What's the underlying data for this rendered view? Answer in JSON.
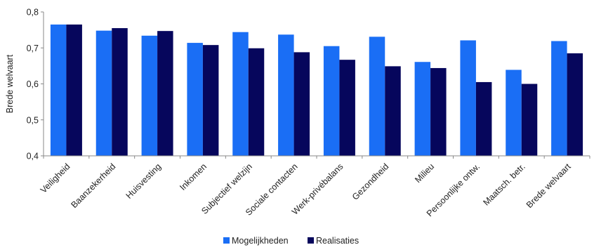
{
  "chart_data": {
    "type": "bar",
    "ylabel": "Brede welvaart",
    "xlabel": "",
    "ylim": [
      0.4,
      0.8
    ],
    "yticks": [
      "0,4",
      "0,5",
      "0,6",
      "0,7",
      "0,8"
    ],
    "ytick_values": [
      0.4,
      0.5,
      0.6,
      0.7,
      0.8
    ],
    "grid": false,
    "legend_position": "bottom",
    "categories": [
      "Veiligheid",
      "Baanzekerheid",
      "Huisvesting",
      "Inkomen",
      "Subjectief welzijn",
      "Sociale contacten",
      "Werk-privébalans",
      "Gezondheid",
      "Milieu",
      "Persoonlijke ontw.",
      "Maatsch. betr.",
      "Brede welvaart"
    ],
    "series": [
      {
        "name": "Mogelijkheden",
        "color": "#1a6ef5",
        "values": [
          0.765,
          0.748,
          0.734,
          0.714,
          0.744,
          0.737,
          0.705,
          0.731,
          0.661,
          0.721,
          0.639,
          0.719
        ]
      },
      {
        "name": "Realisaties",
        "color": "#06065c",
        "values": [
          0.765,
          0.755,
          0.747,
          0.708,
          0.699,
          0.688,
          0.667,
          0.649,
          0.644,
          0.605,
          0.6,
          0.685
        ]
      }
    ]
  }
}
